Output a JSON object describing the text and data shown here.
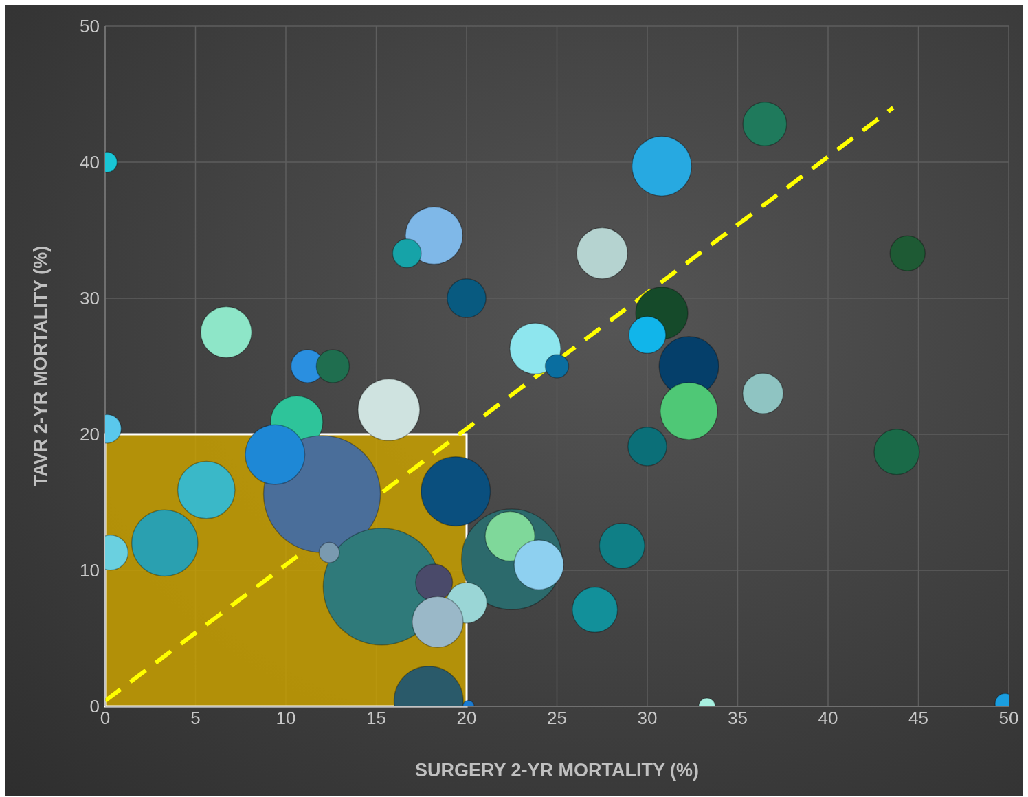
{
  "chart_data": {
    "type": "bubble",
    "xlabel": "SURGERY 2-YR MORTALITY (%)",
    "ylabel": "TAVR 2-YR MORTALITY  (%)",
    "xlim": [
      0,
      50
    ],
    "ylim": [
      0,
      50
    ],
    "xticks": [
      0,
      5,
      10,
      15,
      20,
      25,
      30,
      35,
      40,
      45,
      50
    ],
    "yticks": [
      0,
      10,
      20,
      30,
      40,
      50
    ],
    "grid": true,
    "series": [
      {
        "type": "bubble",
        "x": [
          0.1,
          36.5,
          30.8,
          18.2,
          16.7,
          27.5,
          44.4,
          20,
          6.7,
          30.8,
          30,
          11.2,
          12.6,
          23.8,
          25,
          32.3,
          32.3,
          15.7,
          10.6,
          36.4,
          30,
          43.8,
          0.1,
          19.4,
          22.5,
          22.4,
          24,
          28.6,
          27.1,
          20,
          33.3,
          49.8,
          20.1,
          12,
          15.3,
          9.4,
          5.6,
          3.3,
          0.3,
          18.2,
          18.4,
          17.9,
          12.4
        ],
        "values": [
          40,
          42.8,
          39.7,
          34.6,
          33.3,
          33.3,
          33.3,
          30,
          27.5,
          28.9,
          27.3,
          25,
          25,
          26.3,
          25,
          25,
          21.7,
          21.8,
          20.9,
          23,
          19.1,
          18.7,
          20.4,
          15.8,
          10.8,
          12.5,
          10.4,
          11.8,
          7.1,
          7.6,
          0,
          0.2,
          0,
          15.6,
          8.8,
          18.5,
          15.9,
          12,
          11.3,
          9.1,
          6.2,
          0.4,
          11.3
        ],
        "sizes": [
          0.03,
          0.14,
          0.26,
          0.24,
          0.06,
          0.19,
          0.09,
          0.11,
          0.19,
          0.2,
          0.1,
          0.08,
          0.08,
          0.19,
          0.04,
          0.26,
          0.24,
          0.28,
          0.2,
          0.12,
          0.11,
          0.15,
          0.06,
          0.35,
          0.74,
          0.18,
          0.18,
          0.15,
          0.15,
          0.12,
          0.02,
          0.03,
          0.01,
          1,
          1,
          0.26,
          0.24,
          0.32,
          0.09,
          0.1,
          0.19,
          0.35,
          0.03
        ],
        "colors": [
          "#19c6d6",
          "#1f7a5c",
          "#27a9e1",
          "#7fb8e8",
          "#16a3a8",
          "#b5d3d0",
          "#1e5a34",
          "#085a80",
          "#8ee6c8",
          "#154a2a",
          "#11b5ea",
          "#2a8fe0",
          "#1f6e4f",
          "#8ee6ee",
          "#0a6ea0",
          "#053f6a",
          "#4fc876",
          "#cfe3e0",
          "#2ec49a",
          "#8fc4c2",
          "#0b6f78",
          "#1a6a48",
          "#5ac8ec",
          "#0a4f7e",
          "#2c6a6c",
          "#7fd89a",
          "#8ed0f0",
          "#0f7f86",
          "#12909a",
          "#9ad6d6",
          "#a8f0e0",
          "#1a9ee0",
          "#1a7ad0",
          "#4a6e9a",
          "#2f7a7a",
          "#1e88d6",
          "#3ab8c8",
          "#2aa0b0",
          "#6ad0e0",
          "#4a4a6a",
          "#9ab8c8",
          "#2a5a6a",
          "#7a9ab0"
        ]
      },
      {
        "type": "line",
        "x": [
          0,
          43.6
        ],
        "values": [
          0.4,
          44
        ],
        "color": "#ffff00",
        "line_style": "dashed",
        "marker": "none"
      }
    ],
    "bands": [
      {
        "axis": "x",
        "from": 0,
        "to": 20,
        "color": "#c8a000"
      }
    ]
  }
}
